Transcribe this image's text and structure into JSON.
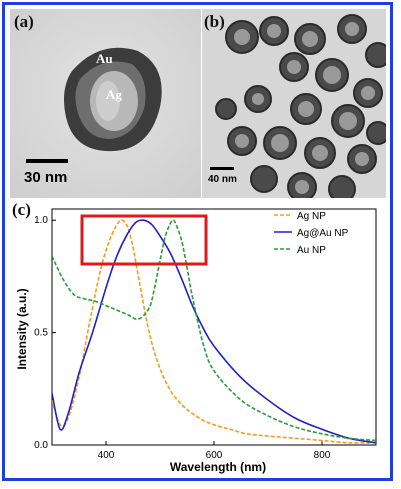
{
  "panels": {
    "a": {
      "label": "(a)",
      "scale_bar": "30 nm",
      "core_label": "Ag",
      "shell_label": "Au"
    },
    "b": {
      "label": "(b)",
      "scale_bar": "40 nm"
    },
    "c": {
      "label": "(c)"
    }
  },
  "colors": {
    "frame": "#1d3fe0",
    "ag": "#f59b1c",
    "agau": "#1f22c8",
    "au": "#2a9a3a",
    "highlight": "#e01a1a"
  },
  "chart_data": {
    "type": "line",
    "title": "",
    "xlabel": "Wavelength (nm)",
    "ylabel": "Intensity (a.u.)",
    "xlim": [
      300,
      900
    ],
    "ylim": [
      0,
      1.05
    ],
    "xticks": [
      400,
      600,
      800
    ],
    "yticks": [
      0.0,
      0.5,
      1.0
    ],
    "xtick_labels": [
      "400",
      "600",
      "800"
    ],
    "ytick_labels": [
      "0.0",
      "0.5",
      "1.0"
    ],
    "legend_position": "top-right",
    "annotation": "red rectangle highlighting the 1.0 peak region",
    "series": [
      {
        "name": "Ag NP",
        "style": "dashed",
        "color": "#f59b1c",
        "x": [
          300,
          315,
          330,
          350,
          370,
          390,
          405,
          420,
          430,
          440,
          450,
          460,
          480,
          500,
          520,
          540,
          560,
          580,
          600,
          630,
          660,
          700,
          750,
          800,
          850,
          900
        ],
        "y": [
          0.2,
          0.09,
          0.12,
          0.3,
          0.55,
          0.78,
          0.9,
          0.98,
          1.0,
          0.97,
          0.88,
          0.75,
          0.5,
          0.34,
          0.24,
          0.18,
          0.14,
          0.11,
          0.09,
          0.07,
          0.05,
          0.04,
          0.03,
          0.02,
          0.01,
          0.01
        ]
      },
      {
        "name": "Ag@Au NP",
        "style": "solid",
        "color": "#1f22c8",
        "x": [
          300,
          315,
          330,
          350,
          375,
          400,
          420,
          440,
          455,
          470,
          485,
          500,
          520,
          540,
          560,
          580,
          600,
          650,
          700,
          750,
          800,
          850,
          900
        ],
        "y": [
          0.23,
          0.07,
          0.14,
          0.32,
          0.5,
          0.7,
          0.84,
          0.94,
          0.99,
          1.0,
          0.98,
          0.93,
          0.85,
          0.74,
          0.62,
          0.52,
          0.44,
          0.3,
          0.2,
          0.12,
          0.07,
          0.03,
          0.01
        ]
      },
      {
        "name": "Au NP",
        "style": "dashed",
        "color": "#2a9a3a",
        "x": [
          300,
          320,
          340,
          360,
          380,
          400,
          420,
          440,
          460,
          480,
          490,
          500,
          510,
          520,
          525,
          530,
          540,
          550,
          560,
          580,
          600,
          650,
          700,
          750,
          800,
          850,
          900
        ],
        "y": [
          0.84,
          0.74,
          0.67,
          0.65,
          0.64,
          0.62,
          0.6,
          0.58,
          0.56,
          0.61,
          0.7,
          0.82,
          0.93,
          0.99,
          1.0,
          0.98,
          0.91,
          0.79,
          0.66,
          0.45,
          0.33,
          0.2,
          0.13,
          0.08,
          0.05,
          0.03,
          0.02
        ]
      }
    ]
  }
}
